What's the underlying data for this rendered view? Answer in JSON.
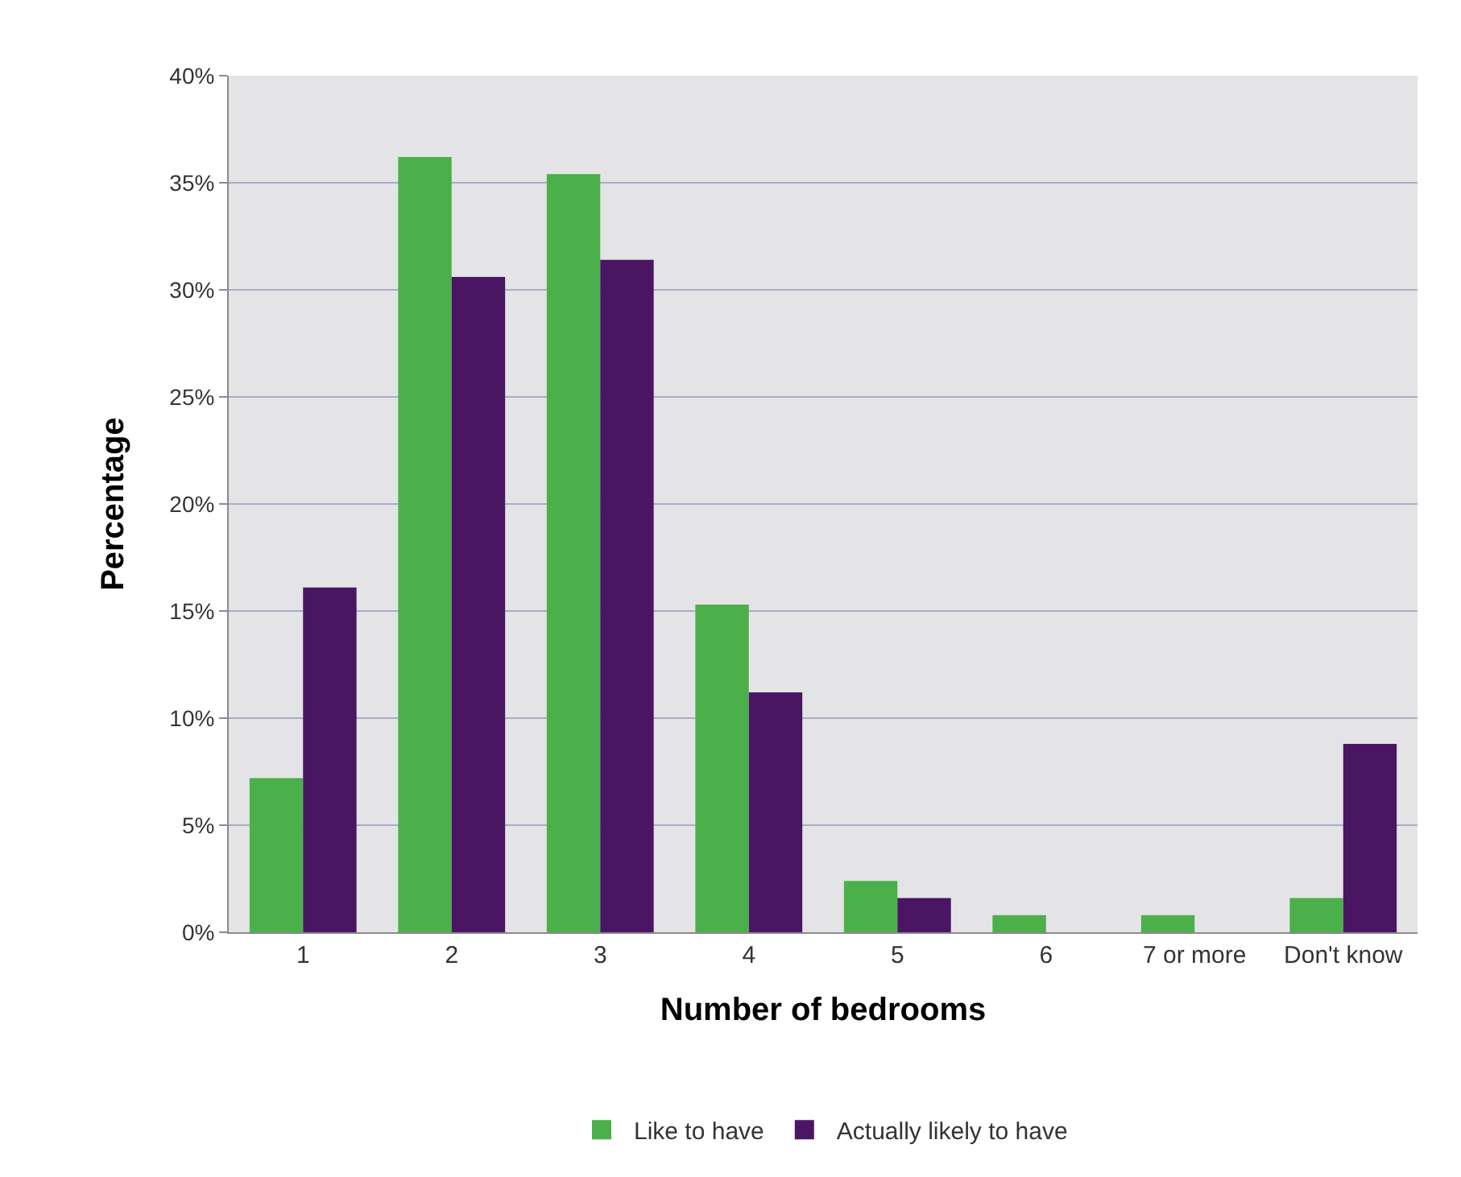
{
  "chart_data": {
    "type": "bar",
    "xlabel": "Number of bedrooms",
    "ylabel": "Percentage",
    "categories": [
      "1",
      "2",
      "3",
      "4",
      "5",
      "6",
      "7 or more",
      "Don't know"
    ],
    "series": [
      {
        "name": "Like to have",
        "color": "#4cb04a",
        "values": [
          7.2,
          36.2,
          35.4,
          15.3,
          2.4,
          0.8,
          0.8,
          1.6
        ]
      },
      {
        "name": "Actually likely to have",
        "color": "#4a1664",
        "values": [
          16.1,
          30.6,
          31.4,
          11.2,
          1.6,
          0,
          0,
          8.8
        ]
      }
    ],
    "ylim": [
      0,
      40
    ],
    "yticks": [
      {
        "value": 0,
        "label": "0%"
      },
      {
        "value": 5,
        "label": "5%"
      },
      {
        "value": 10,
        "label": "10%"
      },
      {
        "value": 15,
        "label": "15%"
      },
      {
        "value": 20,
        "label": "20%"
      },
      {
        "value": 25,
        "label": "25%"
      },
      {
        "value": 30,
        "label": "30%"
      },
      {
        "value": 35,
        "label": "35%"
      },
      {
        "value": 40,
        "label": "40%"
      }
    ],
    "grid": "y",
    "legend": "bottom"
  }
}
